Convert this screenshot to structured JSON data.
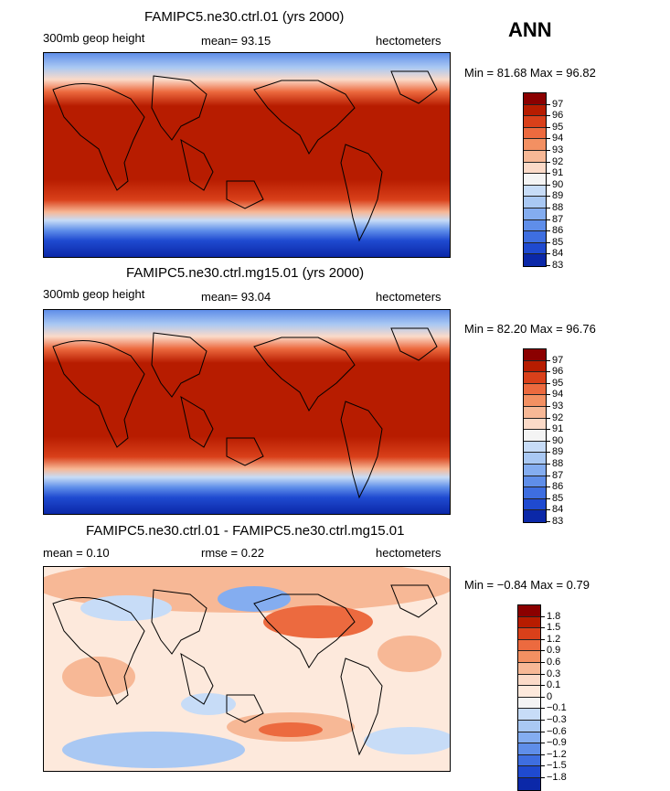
{
  "season": "ANN",
  "panels": [
    {
      "title": "FAMIPC5.ne30.ctrl.01 (yrs 2000)",
      "left_label": "300mb geop height",
      "center_label": "mean=  93.15",
      "right_label": "hectometers",
      "minmax": "Min =  81.68 Max =  96.82",
      "levels": [
        "97",
        "96",
        "95",
        "94",
        "93",
        "92",
        "91",
        "90",
        "89",
        "88",
        "87",
        "86",
        "85",
        "84",
        "83"
      ],
      "colors": [
        "#8b0000",
        "#b71c00",
        "#d9401a",
        "#ec6a3f",
        "#f39062",
        "#f7b896",
        "#fbdac8",
        "#f4f4f4",
        "#c7dcf7",
        "#a9c8f3",
        "#84adf0",
        "#5f8ee9",
        "#3e6ee0",
        "#1f4ad0",
        "#0b28a8"
      ]
    },
    {
      "title": "FAMIPC5.ne30.ctrl.mg15.01 (yrs 2000)",
      "left_label": "300mb geop height",
      "center_label": "mean=  93.04",
      "right_label": "hectometers",
      "minmax": "Min =  82.20 Max =  96.76",
      "levels": [
        "97",
        "96",
        "95",
        "94",
        "93",
        "92",
        "91",
        "90",
        "89",
        "88",
        "87",
        "86",
        "85",
        "84",
        "83"
      ],
      "colors": [
        "#8b0000",
        "#b71c00",
        "#d9401a",
        "#ec6a3f",
        "#f39062",
        "#f7b896",
        "#fbdac8",
        "#f4f4f4",
        "#c7dcf7",
        "#a9c8f3",
        "#84adf0",
        "#5f8ee9",
        "#3e6ee0",
        "#1f4ad0",
        "#0b28a8"
      ]
    },
    {
      "title": "FAMIPC5.ne30.ctrl.01 - FAMIPC5.ne30.ctrl.mg15.01",
      "left_label": "mean =   0.10",
      "center_label": "rmse =   0.22",
      "right_label": "hectometers",
      "minmax": "Min =  −0.84 Max =   0.79",
      "levels": [
        "1.8",
        "1.5",
        "1.2",
        "0.9",
        "0.6",
        "0.3",
        "0.1",
        "0",
        "−0.1",
        "−0.3",
        "−0.6",
        "−0.9",
        "−1.2",
        "−1.5",
        "−1.8"
      ],
      "colors": [
        "#8b0000",
        "#b71c00",
        "#d9401a",
        "#ec6a3f",
        "#f39062",
        "#f7b896",
        "#fbdac8",
        "#fde9dc",
        "#f4f4f4",
        "#c7dcf7",
        "#a9c8f3",
        "#84adf0",
        "#5f8ee9",
        "#3e6ee0",
        "#1f4ad0",
        "#0b28a8"
      ]
    }
  ]
}
